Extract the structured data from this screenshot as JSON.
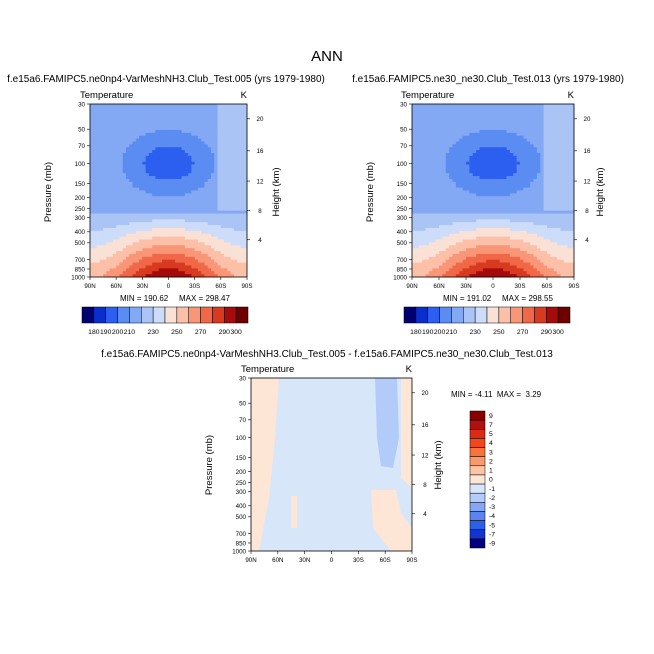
{
  "figure_title": "ANN",
  "chart_data": [
    {
      "type": "heatmap",
      "title": "f.e15a6.FAMIPC5.ne0np4-VarMeshNH3.Club_Test.005 (yrs 1979-1980)",
      "variable": "Temperature",
      "units": "K",
      "xlabel": "",
      "ylabel": "Pressure (mb)",
      "ylabel_right": "Height (km)",
      "x_ticks": [
        "90N",
        "60N",
        "30N",
        "0",
        "30S",
        "60S",
        "90S"
      ],
      "y_ticks": [
        "30",
        "50",
        "70",
        "100",
        "150",
        "200",
        "250",
        "300",
        "400",
        "500",
        "700",
        "850",
        "1000"
      ],
      "y2_ticks": [
        "20",
        "16",
        "12",
        "8",
        "4"
      ],
      "y2_tick_pressure": [
        40.5,
        77.5,
        143,
        260,
        470
      ],
      "ylim": [
        1000,
        30
      ],
      "min_label": "MIN = 190.62",
      "max_label": "MAX = 298.47",
      "levels": [
        "180",
        "190",
        "200",
        "210",
        "220",
        "230",
        "240",
        "250",
        "260",
        "270",
        "280",
        "290",
        "300"
      ],
      "colorbar_labels": [
        "180",
        "190",
        "200",
        "210",
        "230",
        "250",
        "270",
        "290",
        "300"
      ]
    },
    {
      "type": "heatmap",
      "title": "f.e15a6.FAMIPC5.ne30_ne30.Club_Test.013 (yrs 1979-1980)",
      "variable": "Temperature",
      "units": "K",
      "xlabel": "",
      "ylabel": "Pressure (mb)",
      "ylabel_right": "Height (km)",
      "x_ticks": [
        "90N",
        "60N",
        "30N",
        "0",
        "30S",
        "60S",
        "90S"
      ],
      "y_ticks": [
        "30",
        "50",
        "70",
        "100",
        "150",
        "200",
        "250",
        "300",
        "400",
        "500",
        "700",
        "850",
        "1000"
      ],
      "y2_ticks": [
        "20",
        "16",
        "12",
        "8",
        "4"
      ],
      "y2_tick_pressure": [
        40.5,
        77.5,
        143,
        260,
        470
      ],
      "ylim": [
        1000,
        30
      ],
      "min_label": "MIN = 191.02",
      "max_label": "MAX = 298.55",
      "levels": [
        "180",
        "190",
        "200",
        "210",
        "220",
        "230",
        "240",
        "250",
        "260",
        "270",
        "280",
        "290",
        "300"
      ],
      "colorbar_labels": [
        "180",
        "190",
        "200",
        "210",
        "230",
        "250",
        "270",
        "290",
        "300"
      ]
    },
    {
      "type": "heatmap",
      "title": "f.e15a6.FAMIPC5.ne0np4-VarMeshNH3.Club_Test.005 - f.e15a6.FAMIPC5.ne30_ne30.Club_Test.013",
      "variable": "Temperature",
      "units": "K",
      "xlabel": "",
      "ylabel": "Pressure (mb)",
      "ylabel_right": "Height (km)",
      "x_ticks": [
        "90N",
        "60N",
        "30N",
        "0",
        "30S",
        "60S",
        "90S"
      ],
      "y_ticks": [
        "30",
        "50",
        "70",
        "100",
        "150",
        "200",
        "250",
        "300",
        "400",
        "500",
        "700",
        "850",
        "1000"
      ],
      "y2_ticks": [
        "20",
        "16",
        "12",
        "8",
        "4"
      ],
      "y2_tick_pressure": [
        40.5,
        77.5,
        143,
        260,
        470
      ],
      "ylim": [
        1000,
        30
      ],
      "minmax_label": "MIN = -4.11  MAX =  3.29",
      "levels": [
        "9",
        "7",
        "5",
        "4",
        "3",
        "2",
        "1",
        "0",
        "-1",
        "-2",
        "-3",
        "-4",
        "-5",
        "-7",
        "-9"
      ]
    }
  ],
  "colors": {
    "abs_palette": [
      "#000070",
      "#0a2ecc",
      "#2c5ef0",
      "#5b8cf2",
      "#84a9f4",
      "#aac4f6",
      "#cddcf8",
      "#fae1d5",
      "#fcc0a8",
      "#f99677",
      "#f06848",
      "#d83a20",
      "#a50b0b",
      "#6e0000"
    ],
    "diff_palette": [
      "#8a0000",
      "#b11010",
      "#dc2a14",
      "#f0481e",
      "#f7753a",
      "#fa9a6c",
      "#fdc4a5",
      "#fde6d6",
      "#d8e6fa",
      "#b2cbf8",
      "#86a7f3",
      "#5a84ef",
      "#2d5fe9",
      "#1434cf",
      "#000080"
    ]
  }
}
